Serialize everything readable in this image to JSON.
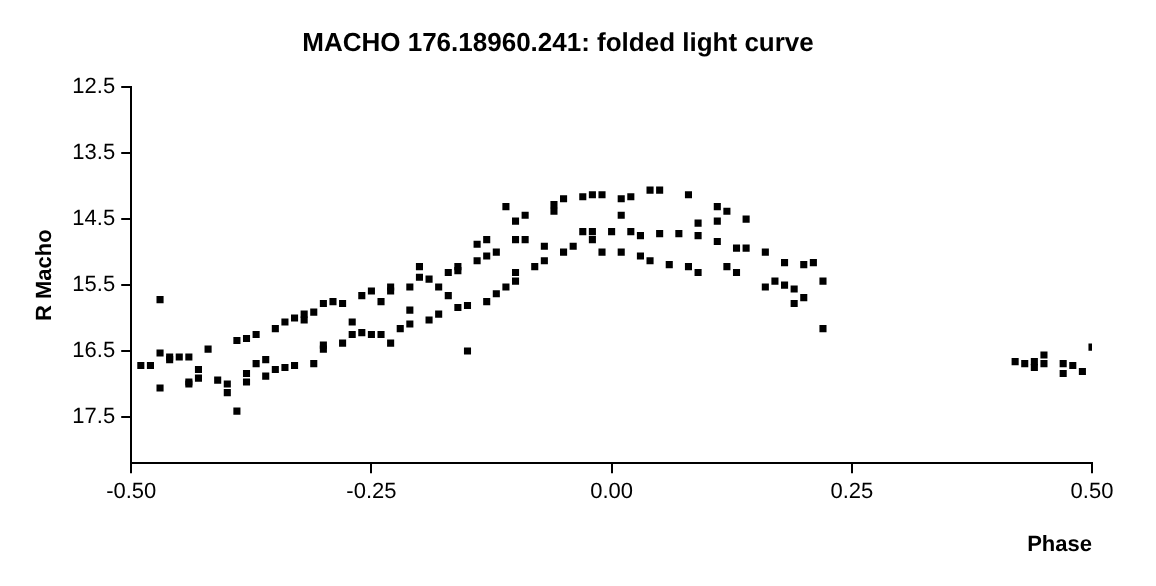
{
  "chart_data": {
    "type": "scatter",
    "title": "MACHO 176.18960.241: folded light curve",
    "xlabel": "Phase",
    "ylabel": "R Macho",
    "xlim": [
      -0.5,
      0.5
    ],
    "xticks": [
      {
        "value": -0.5,
        "label": "-0.50"
      },
      {
        "value": -0.25,
        "label": "-0.25"
      },
      {
        "value": 0,
        "label": "0.00"
      },
      {
        "value": 0.25,
        "label": "0.25"
      },
      {
        "value": 0.5,
        "label": "0.50"
      }
    ],
    "ylim": [
      18.2,
      12.5
    ],
    "yticks": [
      12.5,
      13.5,
      14.5,
      15.5,
      16.5,
      17.5
    ],
    "grid": false,
    "legend": false,
    "marker": "square",
    "series": [
      {
        "color": "#000000",
        "x": [
          -0.49,
          -0.48,
          -0.47,
          -0.47,
          -0.46,
          -0.46,
          -0.45,
          -0.47,
          -0.44,
          -0.44,
          -0.43,
          -0.43,
          -0.44,
          -0.42,
          -0.41,
          -0.4,
          -0.4,
          -0.39,
          -0.39,
          -0.38,
          -0.38,
          -0.38,
          -0.37,
          -0.37,
          -0.36,
          -0.36,
          -0.35,
          -0.35,
          -0.34,
          -0.34,
          -0.33,
          -0.33,
          -0.32,
          -0.32,
          -0.31,
          -0.31,
          -0.3,
          -0.3,
          -0.3,
          -0.29,
          -0.28,
          -0.28,
          -0.27,
          -0.27,
          -0.26,
          -0.26,
          -0.25,
          -0.25,
          -0.24,
          -0.24,
          -0.23,
          -0.23,
          -0.23,
          -0.22,
          -0.21,
          -0.21,
          -0.21,
          -0.2,
          -0.2,
          -0.19,
          -0.19,
          -0.18,
          -0.18,
          -0.17,
          -0.17,
          -0.16,
          -0.16,
          -0.16,
          -0.15,
          -0.15,
          -0.14,
          -0.14,
          -0.13,
          -0.13,
          -0.13,
          -0.12,
          -0.12,
          -0.11,
          -0.11,
          -0.1,
          -0.1,
          -0.1,
          -0.1,
          -0.09,
          -0.09,
          -0.08,
          -0.07,
          -0.07,
          -0.06,
          -0.06,
          -0.05,
          -0.05,
          -0.04,
          -0.03,
          -0.03,
          -0.02,
          -0.02,
          -0.02,
          -0.01,
          -0.01,
          0.0,
          0.01,
          0.01,
          0.01,
          0.02,
          0.02,
          0.03,
          0.03,
          0.04,
          0.04,
          0.05,
          0.05,
          0.06,
          0.07,
          0.08,
          0.08,
          0.09,
          0.09,
          0.09,
          0.11,
          0.11,
          0.11,
          0.12,
          0.12,
          0.13,
          0.13,
          0.14,
          0.14,
          0.16,
          0.16,
          0.17,
          0.18,
          0.18,
          0.19,
          0.19,
          0.2,
          0.2,
          0.21,
          0.22,
          0.22,
          0.42,
          0.43,
          0.44,
          0.44,
          0.45,
          0.45,
          0.47,
          0.47,
          0.48,
          0.49,
          0.5
        ],
        "values": [
          16.72,
          16.72,
          16.53,
          15.72,
          16.59,
          16.63,
          16.59,
          17.06,
          16.97,
          17.0,
          16.78,
          16.91,
          16.59,
          16.47,
          16.94,
          17.13,
          17.0,
          17.41,
          16.34,
          16.84,
          16.31,
          16.97,
          16.25,
          16.69,
          16.88,
          16.63,
          16.16,
          16.78,
          16.75,
          16.06,
          16.0,
          16.72,
          15.94,
          16.03,
          16.69,
          15.91,
          16.47,
          15.78,
          16.41,
          15.75,
          16.38,
          15.78,
          16.06,
          16.25,
          15.66,
          16.22,
          16.25,
          15.59,
          15.75,
          16.25,
          15.53,
          15.59,
          16.38,
          16.16,
          15.88,
          15.53,
          16.09,
          15.22,
          15.38,
          15.41,
          16.03,
          15.53,
          15.94,
          15.31,
          15.66,
          15.28,
          15.84,
          15.22,
          16.5,
          15.81,
          14.88,
          15.13,
          14.81,
          15.75,
          15.06,
          15.63,
          15.0,
          15.53,
          14.31,
          14.53,
          15.44,
          14.81,
          15.31,
          14.81,
          14.44,
          15.22,
          14.91,
          15.13,
          14.38,
          14.28,
          15.0,
          14.19,
          14.91,
          14.69,
          14.16,
          14.13,
          14.81,
          14.69,
          14.13,
          15.0,
          14.69,
          14.19,
          15.0,
          14.44,
          14.69,
          14.16,
          15.06,
          14.75,
          14.06,
          15.13,
          14.72,
          14.06,
          15.19,
          14.72,
          14.13,
          15.22,
          14.75,
          14.56,
          15.31,
          14.53,
          14.84,
          14.31,
          15.22,
          14.38,
          14.94,
          15.31,
          14.5,
          14.94,
          15.0,
          15.53,
          15.44,
          15.16,
          15.5,
          15.56,
          15.78,
          15.19,
          15.69,
          15.16,
          15.44,
          16.16,
          16.66,
          16.69,
          16.66,
          16.75,
          16.69,
          16.56,
          16.84,
          16.69,
          16.72,
          16.81,
          16.44
        ]
      }
    ]
  }
}
